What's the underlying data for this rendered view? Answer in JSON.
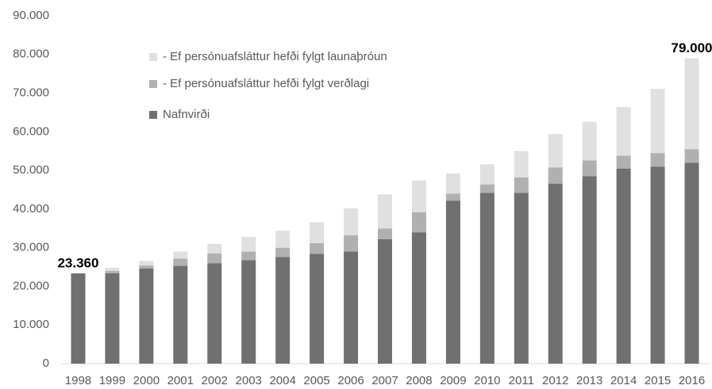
{
  "chart_data": {
    "type": "stacked_bar",
    "categories": [
      "1998",
      "1999",
      "2000",
      "2001",
      "2002",
      "2003",
      "2004",
      "2005",
      "2006",
      "2007",
      "2008",
      "2009",
      "2010",
      "2011",
      "2012",
      "2013",
      "2014",
      "2015",
      "2016"
    ],
    "series": [
      {
        "name": "Nafnvirði",
        "color": "#707070",
        "values": [
          23360,
          23400,
          24600,
          25300,
          26000,
          26800,
          27600,
          28400,
          29000,
          32200,
          34000,
          42200,
          44200,
          44200,
          46600,
          48500,
          50500,
          51000,
          52000
        ]
      },
      {
        "name": "- Ef persónuafsláttur hefði fylgt verðlagi",
        "color": "#b0b0b0",
        "values": [
          0,
          600,
          800,
          1900,
          2500,
          2200,
          2400,
          2800,
          4200,
          2800,
          5200,
          1800,
          2200,
          4000,
          4200,
          4100,
          3300,
          3500,
          3500
        ]
      },
      {
        "name": "- Ef persónuafsláttur hefði fylgt launaþróun",
        "color": "#e0e0e0",
        "values": [
          0,
          800,
          1200,
          1800,
          2500,
          3800,
          4400,
          5400,
          7000,
          8800,
          8200,
          5200,
          5200,
          6800,
          8600,
          10000,
          12600,
          16600,
          23500
        ]
      }
    ],
    "annotations": [
      {
        "category": "1998",
        "value": 23360,
        "label": "23.360"
      },
      {
        "category": "2016",
        "value": 79000,
        "label": "79.000"
      }
    ],
    "ylim": [
      0,
      90000
    ],
    "yticks": [
      0,
      {
        "value": 10000,
        "label": "10.000"
      },
      {
        "value": 20000,
        "label": "20.000"
      },
      {
        "value": 30000,
        "label": "30.000"
      },
      {
        "value": 40000,
        "label": "40.000"
      },
      {
        "value": 50000,
        "label": "50.000"
      },
      {
        "value": 60000,
        "label": "60.000"
      },
      {
        "value": 70000,
        "label": "70.000"
      },
      {
        "value": 80000,
        "label": "80.000"
      },
      {
        "value": 90000,
        "label": "90.000"
      }
    ],
    "grid": false,
    "legend": "top-left"
  }
}
